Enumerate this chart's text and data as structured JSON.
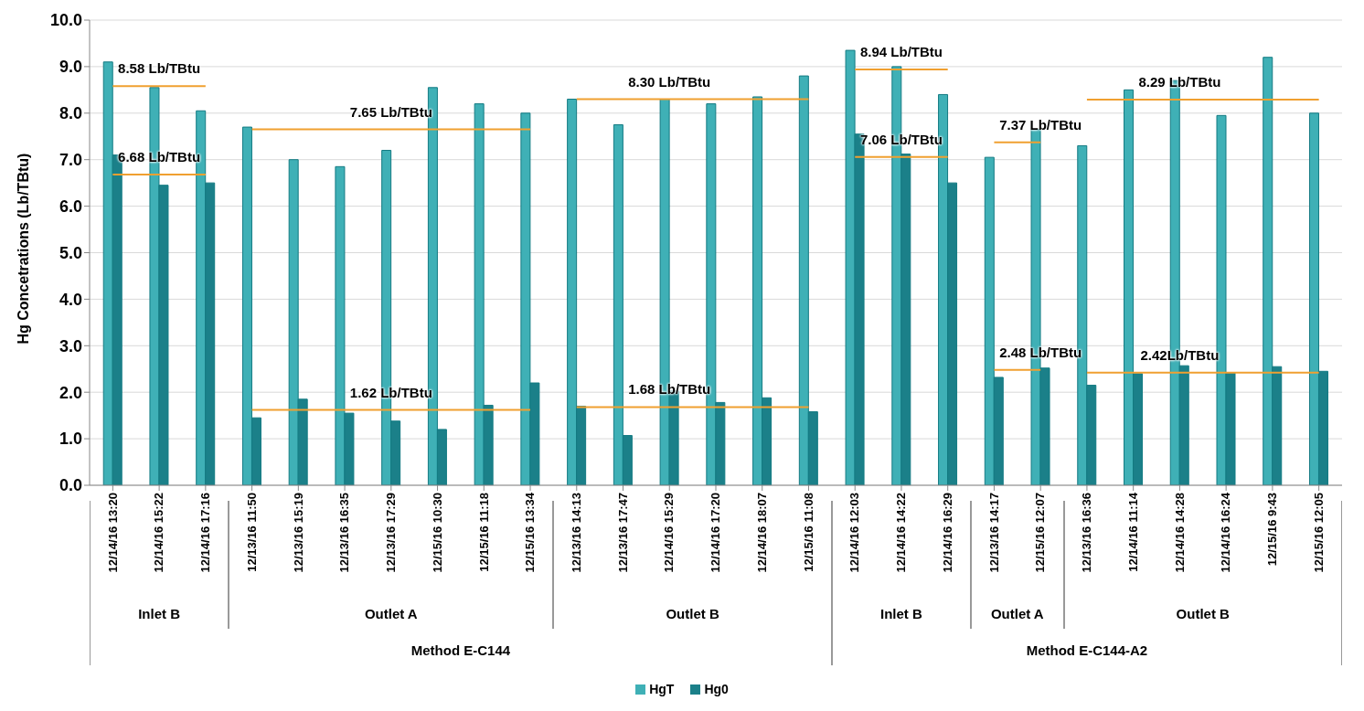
{
  "chart_data": {
    "type": "bar",
    "ylabel": "Hg Concetrations (Lb/TBtu)",
    "categories": [
      "12/14/16 13:20",
      "12/14/16 15:22",
      "12/14/16 17:16",
      "12/13/16 11:50",
      "12/13/16 15:19",
      "12/13/16 16:35",
      "12/13/16 17:29",
      "12/15/16 10:30",
      "12/15/16 11:18",
      "12/15/16 13:34",
      "12/13/16 14:13",
      "12/13/16 17:47",
      "12/14/16 15:29",
      "12/14/16 17:20",
      "12/14/16 18:07",
      "12/15/16 11:08",
      "12/14/16 12:03",
      "12/14/16 14:22",
      "12/14/16 16:29",
      "12/13/16 14:17",
      "12/15/16 12:07",
      "12/13/16 16:36",
      "12/14/16 11:14",
      "12/14/16 14:28",
      "12/14/16 16:24",
      "12/15/16 9:43",
      "12/15/16 12:05"
    ],
    "series": [
      {
        "name": "HgT",
        "color": "#3fb0b6",
        "values": [
          9.1,
          8.55,
          8.05,
          7.7,
          7.0,
          6.85,
          7.2,
          8.55,
          8.2,
          8.0,
          8.3,
          7.75,
          8.3,
          8.2,
          8.35,
          8.8,
          9.35,
          9.0,
          8.4,
          7.05,
          7.65,
          7.3,
          8.5,
          8.7,
          7.95,
          9.2,
          8.0
        ]
      },
      {
        "name": "Hg0",
        "color": "#1b8089",
        "values": [
          7.1,
          6.45,
          6.5,
          1.45,
          1.85,
          1.55,
          1.38,
          1.2,
          1.72,
          2.2,
          1.7,
          1.07,
          2.03,
          1.78,
          1.88,
          1.58,
          7.55,
          7.12,
          6.5,
          2.32,
          2.52,
          2.15,
          2.4,
          2.57,
          2.42,
          2.55,
          2.45
        ]
      },
      {
        "type": "line",
        "color": "#f0a030",
        "values": [
          8.58,
          8.58,
          8.58,
          null,
          null,
          null,
          null,
          null,
          null,
          null,
          null,
          null,
          null,
          null,
          null,
          null,
          null,
          null,
          null,
          null,
          null,
          null,
          null,
          null,
          null,
          null,
          null
        ]
      },
      {
        "type": "line",
        "color": "#f0a030",
        "values": [
          6.68,
          6.68,
          6.68,
          null,
          null,
          null,
          null,
          null,
          null,
          null,
          null,
          null,
          null,
          null,
          null,
          null,
          null,
          null,
          null,
          null,
          null,
          null,
          null,
          null,
          null,
          null,
          null
        ]
      },
      {
        "type": "line",
        "color": "#f0a030",
        "values": [
          null,
          null,
          null,
          7.65,
          7.65,
          7.65,
          7.65,
          7.65,
          7.65,
          7.65,
          null,
          null,
          null,
          null,
          null,
          null,
          null,
          null,
          null,
          null,
          null,
          null,
          null,
          null,
          null,
          null,
          null
        ]
      },
      {
        "type": "line",
        "color": "#f0a030",
        "values": [
          null,
          null,
          null,
          1.62,
          1.62,
          1.62,
          1.62,
          1.62,
          1.62,
          1.62,
          null,
          null,
          null,
          null,
          null,
          null,
          null,
          null,
          null,
          null,
          null,
          null,
          null,
          null,
          null,
          null,
          null
        ]
      },
      {
        "type": "line",
        "color": "#f0a030",
        "values": [
          null,
          null,
          null,
          null,
          null,
          null,
          null,
          null,
          null,
          null,
          8.3,
          8.3,
          8.3,
          8.3,
          8.3,
          8.3,
          null,
          null,
          null,
          null,
          null,
          null,
          null,
          null,
          null,
          null,
          null
        ]
      },
      {
        "type": "line",
        "color": "#f0a030",
        "values": [
          null,
          null,
          null,
          null,
          null,
          null,
          null,
          null,
          null,
          null,
          1.68,
          1.68,
          1.68,
          1.68,
          1.68,
          1.68,
          null,
          null,
          null,
          null,
          null,
          null,
          null,
          null,
          null,
          null,
          null
        ]
      },
      {
        "type": "line",
        "color": "#f0a030",
        "values": [
          null,
          null,
          null,
          null,
          null,
          null,
          null,
          null,
          null,
          null,
          null,
          null,
          null,
          null,
          null,
          null,
          8.94,
          8.94,
          8.94,
          null,
          null,
          null,
          null,
          null,
          null,
          null,
          null
        ]
      },
      {
        "type": "line",
        "color": "#f0a030",
        "values": [
          null,
          null,
          null,
          null,
          null,
          null,
          null,
          null,
          null,
          null,
          null,
          null,
          null,
          null,
          null,
          null,
          7.06,
          7.06,
          7.06,
          null,
          null,
          null,
          null,
          null,
          null,
          null,
          null
        ]
      },
      {
        "type": "line",
        "color": "#f0a030",
        "values": [
          null,
          null,
          null,
          null,
          null,
          null,
          null,
          null,
          null,
          null,
          null,
          null,
          null,
          null,
          null,
          null,
          null,
          null,
          null,
          7.37,
          7.37,
          null,
          null,
          null,
          null,
          null,
          null
        ]
      },
      {
        "type": "line",
        "color": "#f0a030",
        "values": [
          null,
          null,
          null,
          null,
          null,
          null,
          null,
          null,
          null,
          null,
          null,
          null,
          null,
          null,
          null,
          null,
          null,
          null,
          null,
          2.48,
          2.48,
          null,
          null,
          null,
          null,
          null,
          null
        ]
      },
      {
        "type": "line",
        "color": "#f0a030",
        "values": [
          null,
          null,
          null,
          null,
          null,
          null,
          null,
          null,
          null,
          null,
          null,
          null,
          null,
          null,
          null,
          null,
          null,
          null,
          null,
          null,
          null,
          8.29,
          8.29,
          8.29,
          8.29,
          8.29,
          8.29
        ]
      },
      {
        "type": "line",
        "color": "#f0a030",
        "values": [
          null,
          null,
          null,
          null,
          null,
          null,
          null,
          null,
          null,
          null,
          null,
          null,
          null,
          null,
          null,
          null,
          null,
          null,
          null,
          null,
          null,
          2.42,
          2.42,
          2.42,
          2.42,
          2.42,
          2.42
        ]
      }
    ],
    "ylim": [
      0,
      10
    ],
    "yticks": [
      {
        "value": 0,
        "label": "0.0"
      },
      {
        "value": 1,
        "label": "1.0"
      },
      {
        "value": 2,
        "label": "2.0"
      },
      {
        "value": 3,
        "label": "3.0"
      },
      {
        "value": 4,
        "label": "4.0"
      },
      {
        "value": 5,
        "label": "5.0"
      },
      {
        "value": 6,
        "label": "6.0"
      },
      {
        "value": 7,
        "label": "7.0"
      },
      {
        "value": 8,
        "label": "8.0"
      },
      {
        "value": 9,
        "label": "9.0"
      },
      {
        "value": 10,
        "label": "10.0"
      }
    ],
    "grid": "y",
    "legend": "bottom",
    "annotations": [
      {
        "text": "8.58 Lb/TBtu",
        "x": "12/14/16 15:22",
        "y": 8.58
      },
      {
        "text": "6.68 Lb/TBtu",
        "x": "12/14/16 15:22",
        "y": 6.68
      },
      {
        "text": "7.65 Lb/TBtu",
        "x": "12/13/16 17:29",
        "y": 7.65
      },
      {
        "text": "1.62 Lb/TBtu",
        "x": "12/13/16 17:29",
        "y": 1.62
      },
      {
        "text": "8.30 Lb/TBtu",
        "x": "12/14/16 15:29",
        "y": 8.3
      },
      {
        "text": "1.68 Lb/TBtu",
        "x": "12/14/16 15:29",
        "y": 1.68
      },
      {
        "text": "8.94 Lb/TBtu",
        "x": "12/14/16 14:22",
        "y": 8.94
      },
      {
        "text": "7.06 Lb/TBtu",
        "x": "12/14/16 14:22",
        "y": 7.06
      },
      {
        "text": "7.37 Lb/TBtu",
        "x": "12/15/16 12:07",
        "y": 7.37
      },
      {
        "text": "2.48 Lb/TBtu",
        "x": "12/15/16 12:07",
        "y": 2.48
      },
      {
        "text": "8.29 Lb/TBtu",
        "x": "12/14/16 14:28",
        "y": 8.29
      },
      {
        "text": "2.42Lb/TBtu",
        "x": "12/14/16 14:28",
        "y": 2.42
      },
      "Inlet B",
      "Outlet A",
      "Outlet B",
      "Inlet B",
      "Outlet A",
      "Outlet B",
      "Method E-C144",
      "Method E-C144-A2"
    ]
  }
}
